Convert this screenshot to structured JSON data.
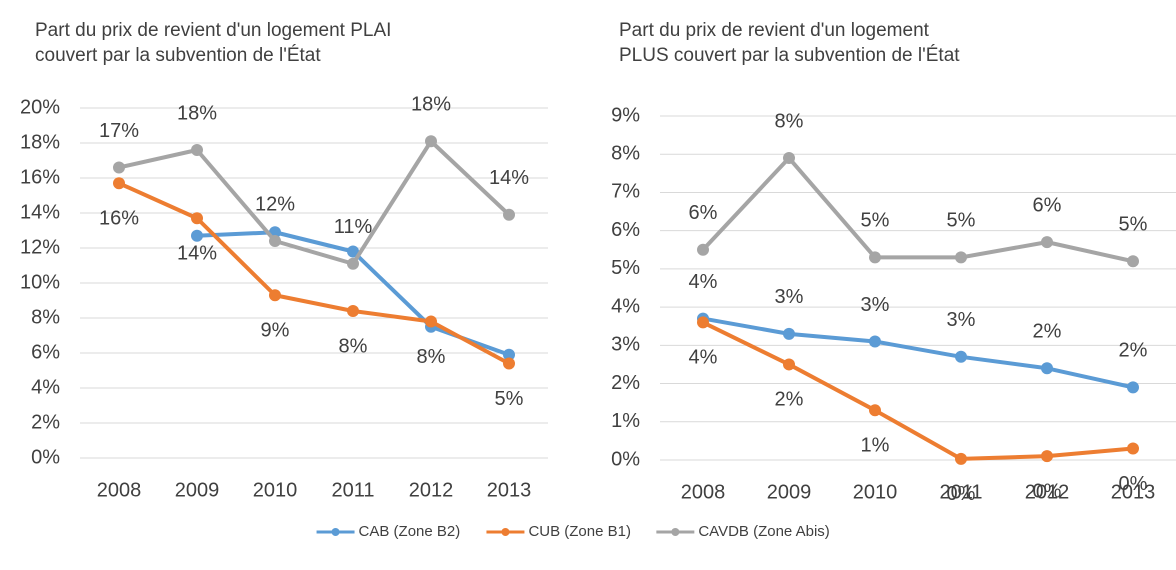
{
  "chart_data": [
    {
      "type": "line",
      "title": [
        "Part du prix de revient d'un logement PLAI",
        "couvert par la subvention de l'État"
      ],
      "categories": [
        "2008",
        "2009",
        "2010",
        "2011",
        "2012",
        "2013"
      ],
      "ylim": [
        0,
        20
      ],
      "yticks": [
        {
          "value": 0,
          "label": "0%"
        },
        {
          "value": 2,
          "label": "2%"
        },
        {
          "value": 4,
          "label": "4%"
        },
        {
          "value": 6,
          "label": "6%"
        },
        {
          "value": 8,
          "label": "8%"
        },
        {
          "value": 10,
          "label": "10%"
        },
        {
          "value": 12,
          "label": "12%"
        },
        {
          "value": 14,
          "label": "14%"
        },
        {
          "value": 16,
          "label": "16%"
        },
        {
          "value": 18,
          "label": "18%"
        },
        {
          "value": 20,
          "label": "20%"
        }
      ],
      "grid": true,
      "legend": "bottom",
      "series": [
        {
          "name": "CAB (Zone B2)",
          "color": "#5b9bd5",
          "values": [
            null,
            12.7,
            12.9,
            11.8,
            7.5,
            5.9
          ]
        },
        {
          "name": "CUB (Zone B1)",
          "color": "#ed7d31",
          "values": [
            15.7,
            13.7,
            9.3,
            8.4,
            7.8,
            5.4
          ],
          "value_labels": [
            "16%",
            "14%",
            "9%",
            "8%",
            "8%",
            "5%"
          ]
        },
        {
          "name": "CAVDB (Zone Abis)",
          "color": "#a5a5a5",
          "values": [
            16.6,
            17.6,
            12.4,
            11.1,
            18.1,
            13.9
          ],
          "value_labels": [
            "17%",
            "18%",
            "12%",
            "11%",
            "18%",
            "14%"
          ]
        }
      ]
    },
    {
      "type": "line",
      "title": [
        "Part du prix de revient d'un logement",
        "PLUS couvert par la subvention de l'État"
      ],
      "categories": [
        "2008",
        "2009",
        "2010",
        "2011",
        "2012",
        "2013"
      ],
      "ylim": [
        0,
        9
      ],
      "yticks": [
        {
          "value": 0,
          "label": "0%"
        },
        {
          "value": 1,
          "label": "1%"
        },
        {
          "value": 2,
          "label": "2%"
        },
        {
          "value": 3,
          "label": "3%"
        },
        {
          "value": 4,
          "label": "4%"
        },
        {
          "value": 5,
          "label": "5%"
        },
        {
          "value": 6,
          "label": "6%"
        },
        {
          "value": 7,
          "label": "7%"
        },
        {
          "value": 8,
          "label": "8%"
        },
        {
          "value": 9,
          "label": "9%"
        }
      ],
      "grid": true,
      "series": [
        {
          "color": "#5b9bd5",
          "values": [
            3.7,
            3.3,
            3.1,
            2.7,
            2.4,
            1.9
          ],
          "value_labels": [
            "4%",
            "3%",
            "3%",
            "3%",
            "2%",
            "2%"
          ]
        },
        {
          "color": "#ed7d31",
          "values": [
            3.6,
            2.5,
            1.3,
            0.03,
            0.1,
            0.3
          ],
          "value_labels": [
            "4%",
            "2%",
            "1%",
            "0%",
            "0%",
            "0%"
          ]
        },
        {
          "color": "#a5a5a5",
          "values": [
            5.5,
            7.9,
            5.3,
            5.3,
            5.7,
            5.2
          ],
          "value_labels": [
            "6%",
            "8%",
            "5%",
            "5%",
            "6%",
            "5%"
          ]
        }
      ]
    }
  ]
}
